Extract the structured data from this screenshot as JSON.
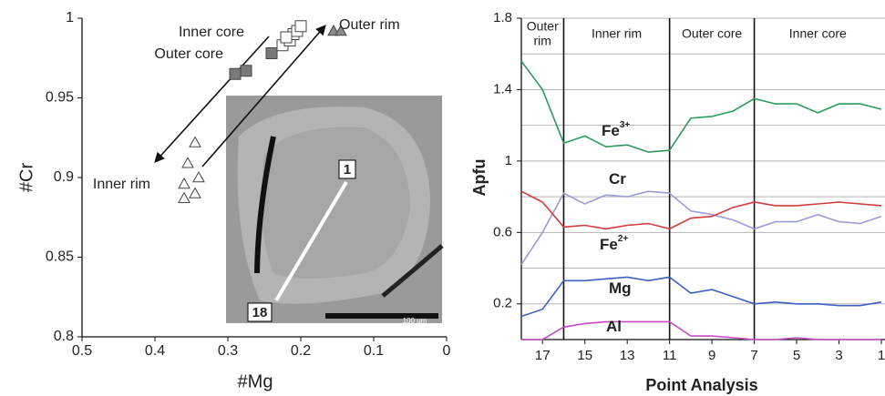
{
  "chart_data": [
    {
      "type": "scatter",
      "x_label": "#Mg",
      "y_label": "#Cr",
      "xlim": [
        0.5,
        0
      ],
      "ylim": [
        0.8,
        1
      ],
      "xticks": [
        0.5,
        0.4,
        0.3,
        0.2,
        0.1,
        0
      ],
      "yticks": [
        0.8,
        0.85,
        0.9,
        0.95,
        1
      ],
      "series": [
        {
          "name": "Outer rim",
          "marker": "triangle",
          "color": "#8a8a8a",
          "x": [
            0.155,
            0.145
          ],
          "values": [
            0.992,
            0.992
          ]
        },
        {
          "name": "Inner core",
          "marker": "square",
          "color": "#ffffff",
          "x": [
            0.225,
            0.215,
            0.21,
            0.205,
            0.2,
            0.22
          ],
          "values": [
            0.983,
            0.986,
            0.99,
            0.992,
            0.995,
            0.988
          ]
        },
        {
          "name": "Outer core",
          "marker": "square",
          "color": "#7a7a7a",
          "x": [
            0.29,
            0.275,
            0.24
          ],
          "values": [
            0.965,
            0.967,
            0.978
          ]
        },
        {
          "name": "Inner rim",
          "marker": "triangle",
          "color": "#ffffff",
          "x": [
            0.345,
            0.355,
            0.34,
            0.36,
            0.345,
            0.36
          ],
          "values": [
            0.922,
            0.909,
            0.9,
            0.896,
            0.89,
            0.887
          ]
        }
      ],
      "inset": {
        "point_labels": [
          "1",
          "18"
        ],
        "scale_bar": "100 um"
      }
    },
    {
      "type": "line",
      "x_label": "Point Analysis",
      "y_label": "Apfu",
      "x": [
        18,
        17,
        16,
        15,
        14,
        13,
        12,
        11,
        10,
        9,
        8,
        7,
        6,
        5,
        4,
        3,
        2,
        1
      ],
      "xlim": [
        18,
        1
      ],
      "ylim": [
        0,
        1.8
      ],
      "xticks": [
        17,
        15,
        13,
        11,
        9,
        7,
        5,
        3,
        1
      ],
      "yticks": [
        0.2,
        0.6,
        1,
        1.4,
        1.8
      ],
      "ygrid": [
        0.2,
        0.4,
        0.6,
        0.8,
        1,
        1.2,
        1.4,
        1.6,
        1.8
      ],
      "zones": [
        {
          "label": [
            "Outer",
            "rim"
          ],
          "start": 18,
          "end": 16
        },
        {
          "label": [
            "Inner rim"
          ],
          "start": 16,
          "end": 11
        },
        {
          "label": [
            "Outer core"
          ],
          "start": 11,
          "end": 7
        },
        {
          "label": [
            "Inner core"
          ],
          "start": 7,
          "end": 1
        }
      ],
      "series": [
        {
          "name": "Fe",
          "name_sup": "3+",
          "color": "#2e9a5e",
          "values": [
            1.56,
            1.4,
            1.1,
            1.14,
            1.08,
            1.09,
            1.05,
            1.06,
            1.24,
            1.25,
            1.28,
            1.35,
            1.32,
            1.32,
            1.27,
            1.32,
            1.32,
            1.29
          ]
        },
        {
          "name": "Cr",
          "color": "#9b9bd6",
          "values": [
            0.42,
            0.6,
            0.82,
            0.76,
            0.81,
            0.8,
            0.83,
            0.82,
            0.72,
            0.7,
            0.67,
            0.62,
            0.66,
            0.66,
            0.7,
            0.66,
            0.65,
            0.69
          ]
        },
        {
          "name": "Fe",
          "name_sup": "2+",
          "color": "#d23b3b",
          "values": [
            0.83,
            0.77,
            0.63,
            0.64,
            0.62,
            0.64,
            0.65,
            0.62,
            0.68,
            0.69,
            0.74,
            0.77,
            0.75,
            0.75,
            0.76,
            0.77,
            0.76,
            0.75
          ]
        },
        {
          "name": "Mg",
          "color": "#3f5fc2",
          "values": [
            0.13,
            0.17,
            0.33,
            0.33,
            0.34,
            0.35,
            0.33,
            0.35,
            0.26,
            0.28,
            0.24,
            0.2,
            0.21,
            0.2,
            0.2,
            0.19,
            0.19,
            0.21
          ]
        },
        {
          "name": "Al",
          "color": "#c54cc5",
          "values": [
            0,
            0,
            0.07,
            0.09,
            0.1,
            0.1,
            0.1,
            0.1,
            0.02,
            0.02,
            0.01,
            0,
            0,
            0.01,
            0,
            0,
            0,
            0
          ]
        }
      ]
    }
  ]
}
